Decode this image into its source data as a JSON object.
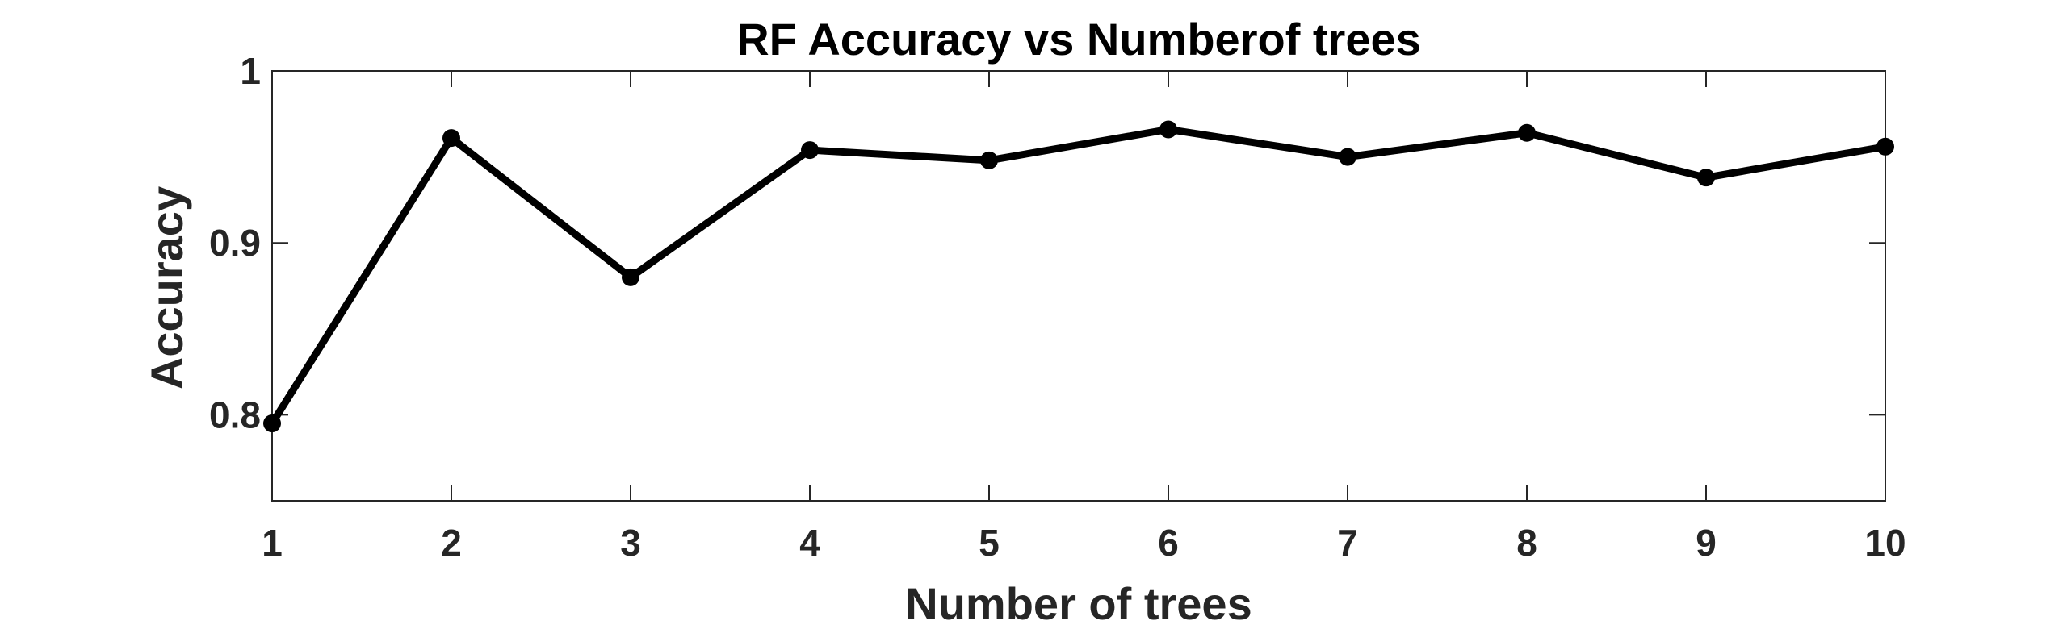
{
  "chart_data": {
    "type": "line",
    "title": "RF Accuracy vs Numberof trees",
    "xlabel": "Number of trees",
    "ylabel": "Accuracy",
    "x": [
      1,
      2,
      3,
      4,
      5,
      6,
      7,
      8,
      9,
      10
    ],
    "series": [
      {
        "values": [
          0.795,
          0.961,
          0.88,
          0.954,
          0.948,
          0.966,
          0.95,
          0.964,
          0.938,
          0.956
        ]
      }
    ],
    "xlim": [
      1,
      10
    ],
    "ylim": [
      0.75,
      1.0
    ],
    "xticks": [
      1,
      2,
      3,
      4,
      5,
      6,
      7,
      8,
      9,
      10
    ],
    "yticks": [
      0.8,
      0.9,
      1.0
    ],
    "ytick_labels": [
      "0.8",
      "0.9",
      "1"
    ],
    "grid": false,
    "line_color": "#000000",
    "marker": "filled-circle"
  }
}
